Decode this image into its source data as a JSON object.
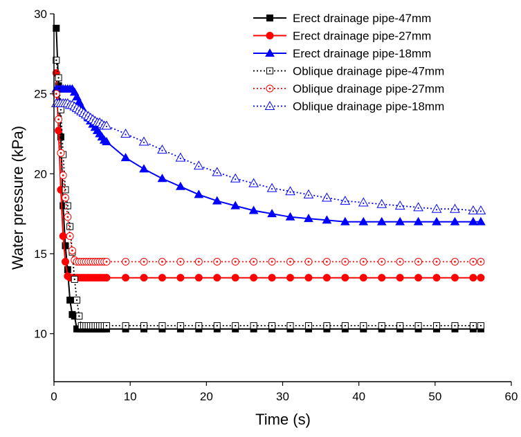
{
  "chart_data": {
    "type": "line",
    "title": "",
    "xlabel": "Time (s)",
    "ylabel": "Water pressure (kPa)",
    "xlim": [
      0,
      60
    ],
    "ylim": [
      7,
      30
    ],
    "xticks": [
      0,
      10,
      20,
      30,
      40,
      50,
      60
    ],
    "yticks": [
      10,
      15,
      20,
      25,
      30
    ],
    "grid": false,
    "legend_position": "top-right",
    "series": [
      {
        "name": "Erect drainage pipe-47mm",
        "color": "#000000",
        "marker": "square-filled",
        "linestyle": "solid",
        "x": [
          0.3,
          0.6,
          0.9,
          1.2,
          1.5,
          1.8,
          2.1,
          2.4,
          2.7,
          3.0,
          3.3,
          3.6,
          3.9,
          4.2,
          4.5,
          4.8,
          5.1,
          5.4,
          5.7,
          6.0,
          6.3,
          6.6,
          6.9,
          9.4,
          11.8,
          14.2,
          16.6,
          19.0,
          21.4,
          23.8,
          26.2,
          28.6,
          31.0,
          33.4,
          35.8,
          38.2,
          40.6,
          43.0,
          45.4,
          47.8,
          50.2,
          52.6,
          55.0,
          56.0
        ],
        "y": [
          29.1,
          25.5,
          22.3,
          18.0,
          15.5,
          14.0,
          12.1,
          11.2,
          11.1,
          10.3,
          10.3,
          10.3,
          10.3,
          10.3,
          10.3,
          10.3,
          10.3,
          10.3,
          10.3,
          10.3,
          10.3,
          10.3,
          10.3,
          10.3,
          10.3,
          10.3,
          10.3,
          10.3,
          10.3,
          10.3,
          10.3,
          10.3,
          10.3,
          10.3,
          10.3,
          10.3,
          10.3,
          10.3,
          10.3,
          10.3,
          10.3,
          10.3,
          10.3,
          10.3
        ]
      },
      {
        "name": "Erect drainage pipe-27mm",
        "color": "#ff0000",
        "marker": "circle-filled",
        "linestyle": "solid",
        "x": [
          0.3,
          0.6,
          0.9,
          1.2,
          1.5,
          1.8,
          2.1,
          2.4,
          2.7,
          3.0,
          3.3,
          3.6,
          3.9,
          4.2,
          4.5,
          4.8,
          5.1,
          5.4,
          5.7,
          6.0,
          6.3,
          6.6,
          6.9,
          9.4,
          11.8,
          14.2,
          16.6,
          19.0,
          21.4,
          23.8,
          26.2,
          28.6,
          31.0,
          33.4,
          35.8,
          38.2,
          40.6,
          43.0,
          45.4,
          47.8,
          50.2,
          52.6,
          55.0,
          56.0
        ],
        "y": [
          26.3,
          22.7,
          19.0,
          16.1,
          14.5,
          13.6,
          13.5,
          13.5,
          13.5,
          13.5,
          13.5,
          13.5,
          13.5,
          13.5,
          13.5,
          13.5,
          13.5,
          13.5,
          13.5,
          13.5,
          13.5,
          13.5,
          13.5,
          13.5,
          13.5,
          13.5,
          13.5,
          13.5,
          13.5,
          13.5,
          13.5,
          13.5,
          13.5,
          13.5,
          13.5,
          13.5,
          13.5,
          13.5,
          13.5,
          13.5,
          13.5,
          13.5,
          13.5,
          13.5
        ]
      },
      {
        "name": "Erect drainage pipe-18mm",
        "color": "#0000ff",
        "marker": "triangle-filled",
        "linestyle": "solid",
        "x": [
          0.3,
          0.6,
          0.9,
          1.2,
          1.5,
          1.8,
          2.1,
          2.4,
          2.7,
          3.0,
          3.3,
          3.6,
          3.9,
          4.2,
          4.5,
          4.8,
          5.1,
          5.4,
          5.7,
          6.0,
          6.3,
          6.6,
          6.9,
          9.4,
          11.8,
          14.2,
          16.6,
          19.0,
          21.4,
          23.8,
          26.2,
          28.6,
          31.0,
          33.4,
          35.8,
          38.2,
          40.6,
          43.0,
          45.4,
          47.8,
          50.2,
          52.6,
          55.0,
          56.0
        ],
        "y": [
          25.3,
          25.3,
          25.3,
          25.3,
          25.3,
          25.3,
          25.3,
          25.3,
          25.1,
          24.8,
          24.5,
          24.2,
          23.9,
          23.7,
          23.5,
          23.3,
          23.1,
          22.9,
          22.7,
          22.5,
          22.3,
          22.1,
          22.0,
          21.0,
          20.3,
          19.7,
          19.2,
          18.7,
          18.3,
          18.0,
          17.7,
          17.5,
          17.3,
          17.2,
          17.1,
          17.0,
          17.0,
          17.0,
          17.0,
          17.0,
          17.0,
          17.0,
          17.0,
          17.0
        ]
      },
      {
        "name": "Oblique drainage pipe-47mm",
        "color": "#000000",
        "marker": "square-dot",
        "linestyle": "dotted",
        "x": [
          0.3,
          0.6,
          0.9,
          1.2,
          1.5,
          1.8,
          2.1,
          2.4,
          2.7,
          3.0,
          3.3,
          3.6,
          3.9,
          4.2,
          4.5,
          4.8,
          5.1,
          5.4,
          5.7,
          6.0,
          6.3,
          6.6,
          6.9,
          9.4,
          11.8,
          14.2,
          16.6,
          19.0,
          21.4,
          23.8,
          26.2,
          28.6,
          31.0,
          33.4,
          35.8,
          38.2,
          40.6,
          43.0,
          45.4,
          47.8,
          50.2,
          52.6,
          55.0,
          56.0
        ],
        "y": [
          27.1,
          26.0,
          24.0,
          21.2,
          19.0,
          18.0,
          16.7,
          15.1,
          13.4,
          12.1,
          11.1,
          10.5,
          10.5,
          10.5,
          10.5,
          10.5,
          10.5,
          10.5,
          10.5,
          10.5,
          10.5,
          10.5,
          10.5,
          10.5,
          10.5,
          10.5,
          10.5,
          10.5,
          10.5,
          10.5,
          10.5,
          10.5,
          10.5,
          10.5,
          10.5,
          10.5,
          10.5,
          10.5,
          10.5,
          10.5,
          10.5,
          10.5,
          10.5,
          10.5
        ]
      },
      {
        "name": "Oblique drainage pipe-27mm",
        "color": "#ff0000",
        "marker": "circle-dot",
        "linestyle": "dotted",
        "x": [
          0.3,
          0.6,
          0.9,
          1.2,
          1.5,
          1.8,
          2.1,
          2.4,
          2.7,
          3.0,
          3.3,
          3.6,
          3.9,
          4.2,
          4.5,
          4.8,
          5.1,
          5.4,
          5.7,
          6.0,
          6.3,
          6.6,
          6.9,
          9.4,
          11.8,
          14.2,
          16.6,
          19.0,
          21.4,
          23.8,
          26.2,
          28.6,
          31.0,
          33.4,
          35.8,
          38.2,
          40.6,
          43.0,
          45.4,
          47.8,
          50.2,
          52.6,
          55.0,
          56.0
        ],
        "y": [
          25.0,
          23.4,
          21.3,
          19.9,
          18.5,
          17.3,
          16.1,
          15.2,
          14.6,
          14.5,
          14.5,
          14.5,
          14.5,
          14.5,
          14.5,
          14.5,
          14.5,
          14.5,
          14.5,
          14.5,
          14.5,
          14.5,
          14.5,
          14.5,
          14.5,
          14.5,
          14.5,
          14.5,
          14.5,
          14.5,
          14.5,
          14.5,
          14.5,
          14.5,
          14.5,
          14.5,
          14.5,
          14.5,
          14.5,
          14.5,
          14.5,
          14.5,
          14.5,
          14.5
        ]
      },
      {
        "name": "Oblique drainage pipe-18mm",
        "color": "#0000ff",
        "marker": "triangle-open",
        "linestyle": "dotted",
        "x": [
          0.3,
          0.6,
          0.9,
          1.2,
          1.5,
          1.8,
          2.1,
          2.4,
          2.7,
          3.0,
          3.3,
          3.6,
          3.9,
          4.2,
          4.5,
          4.8,
          5.1,
          5.4,
          5.7,
          6.0,
          6.3,
          6.6,
          6.9,
          9.4,
          11.8,
          14.2,
          16.6,
          19.0,
          21.4,
          23.8,
          26.2,
          28.6,
          31.0,
          33.4,
          35.8,
          38.2,
          40.6,
          43.0,
          45.4,
          47.8,
          50.2,
          52.6,
          55.0,
          56.0
        ],
        "y": [
          24.4,
          24.4,
          24.4,
          24.4,
          24.4,
          24.4,
          24.3,
          24.3,
          24.2,
          24.1,
          24.0,
          23.9,
          23.8,
          23.7,
          23.6,
          23.5,
          23.4,
          23.3,
          23.2,
          23.2,
          23.1,
          23.0,
          23.0,
          22.5,
          22.0,
          21.5,
          21.0,
          20.5,
          20.1,
          19.7,
          19.4,
          19.1,
          18.9,
          18.7,
          18.5,
          18.3,
          18.2,
          18.1,
          18.0,
          17.9,
          17.8,
          17.8,
          17.7,
          17.7
        ]
      }
    ]
  }
}
